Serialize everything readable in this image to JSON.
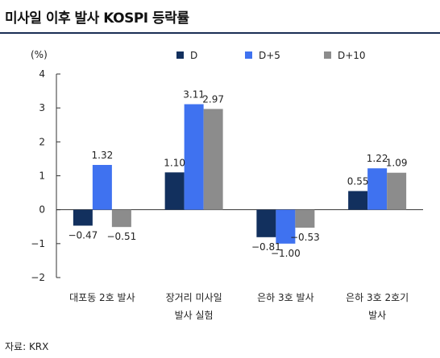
{
  "title": "미사일 이후 발사 KOSPI 등락률",
  "source": "자료: KRX",
  "chart_data": {
    "type": "bar",
    "ylabel": "(%)",
    "ylim": [
      -2,
      4
    ],
    "yticks": [
      "4",
      "3",
      "2",
      "1",
      "0",
      "-1",
      "-2"
    ],
    "grid": false,
    "legend_position": "top-right",
    "categories": [
      [
        "대포동 2호 발사"
      ],
      [
        "장거리 미사일",
        "발사 실험"
      ],
      [
        "은하 3호 발사"
      ],
      [
        "은하 3호 2호기",
        "발사"
      ]
    ],
    "series": [
      {
        "name": "D",
        "color": "#12305e",
        "values": [
          -0.47,
          1.1,
          -0.81,
          0.55
        ],
        "labels": [
          "-0.47",
          "1.10",
          "-0.81",
          "0.55"
        ]
      },
      {
        "name": "D+5",
        "color": "#3f72f0",
        "values": [
          1.32,
          3.11,
          -1.0,
          1.22
        ],
        "labels": [
          "1.32",
          "3.11",
          "-1.00",
          "1.22"
        ]
      },
      {
        "name": "D+10",
        "color": "#8c8c8c",
        "values": [
          -0.51,
          2.97,
          -0.53,
          1.09
        ],
        "labels": [
          "-0.51",
          "2.97",
          "-0.53",
          "1.09"
        ]
      }
    ]
  }
}
